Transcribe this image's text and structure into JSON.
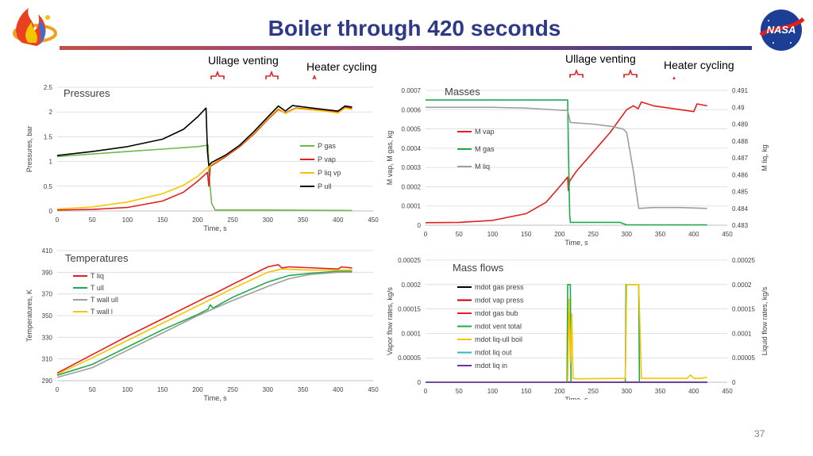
{
  "slide": {
    "title": "Boiler through 420 seconds",
    "page_number": "37",
    "annotations": {
      "ullage_venting_left": "Ullage venting",
      "heater_cycling_left": "Heater cycling",
      "ullage_venting_right": "Ullage venting",
      "heater_cycling_right": "Heater cycling"
    },
    "colors": {
      "title": "#2e3a87",
      "brace": "#e02020"
    },
    "logos": [
      "mission-logo",
      "nasa-logo"
    ]
  },
  "chart_data": [
    {
      "type": "line",
      "title": "Pressures",
      "xlabel": "Time, s",
      "ylabel": "Pressures, bar",
      "xlim": [
        0,
        450
      ],
      "ylim": [
        0,
        2.5
      ],
      "xticks": [
        "0",
        "50",
        "100",
        "150",
        "200",
        "250",
        "300",
        "350",
        "400",
        "450"
      ],
      "yticks": [
        "0",
        "0.5",
        "1",
        "1.5",
        "2",
        "2.5"
      ],
      "legend_position": "right",
      "series": [
        {
          "name": "P gas",
          "color": "#70b84a",
          "points": [
            [
              0,
              1.1
            ],
            [
              50,
              1.15
            ],
            [
              100,
              1.2
            ],
            [
              150,
              1.25
            ],
            [
              200,
              1.3
            ],
            [
              215,
              1.33
            ],
            [
              216,
              0.8
            ],
            [
              220,
              0.15
            ],
            [
              225,
              0.02
            ],
            [
              300,
              0.02
            ],
            [
              420,
              0.01
            ]
          ]
        },
        {
          "name": "P vap",
          "color": "#e02020",
          "points": [
            [
              0,
              0.02
            ],
            [
              50,
              0.03
            ],
            [
              100,
              0.07
            ],
            [
              150,
              0.2
            ],
            [
              180,
              0.38
            ],
            [
              200,
              0.6
            ],
            [
              214,
              0.78
            ],
            [
              216,
              0.5
            ],
            [
              218,
              0.9
            ],
            [
              240,
              1.1
            ],
            [
              260,
              1.3
            ],
            [
              280,
              1.55
            ],
            [
              300,
              1.85
            ],
            [
              315,
              2.05
            ],
            [
              325,
              1.98
            ],
            [
              340,
              2.08
            ],
            [
              380,
              2.03
            ],
            [
              400,
              2.0
            ],
            [
              410,
              2.1
            ],
            [
              420,
              2.08
            ]
          ]
        },
        {
          "name": "P liq vp",
          "color": "#f5c400",
          "points": [
            [
              0,
              0.04
            ],
            [
              50,
              0.08
            ],
            [
              100,
              0.18
            ],
            [
              150,
              0.35
            ],
            [
              180,
              0.52
            ],
            [
              200,
              0.7
            ],
            [
              214,
              0.88
            ],
            [
              216,
              0.85
            ],
            [
              218,
              0.92
            ],
            [
              240,
              1.12
            ],
            [
              260,
              1.32
            ],
            [
              280,
              1.57
            ],
            [
              300,
              1.87
            ],
            [
              315,
              2.07
            ],
            [
              325,
              1.97
            ],
            [
              340,
              2.07
            ],
            [
              380,
              2.02
            ],
            [
              400,
              1.98
            ],
            [
              410,
              2.08
            ],
            [
              420,
              2.05
            ]
          ]
        },
        {
          "name": "P ull",
          "color": "#000000",
          "points": [
            [
              0,
              1.12
            ],
            [
              50,
              1.2
            ],
            [
              100,
              1.3
            ],
            [
              150,
              1.45
            ],
            [
              180,
              1.65
            ],
            [
              200,
              1.9
            ],
            [
              212,
              2.08
            ],
            [
              214,
              1.2
            ],
            [
              216,
              0.92
            ],
            [
              220,
              0.98
            ],
            [
              240,
              1.13
            ],
            [
              260,
              1.33
            ],
            [
              280,
              1.6
            ],
            [
              300,
              1.9
            ],
            [
              315,
              2.12
            ],
            [
              325,
              2.02
            ],
            [
              335,
              2.13
            ],
            [
              380,
              2.05
            ],
            [
              400,
              2.02
            ],
            [
              410,
              2.12
            ],
            [
              420,
              2.1
            ]
          ]
        }
      ]
    },
    {
      "type": "line",
      "title": "Masses",
      "xlabel": "Time, s",
      "ylabel": "M vap, M gas, kg",
      "ylabel_right": "M liq, kg",
      "xlim": [
        0,
        450
      ],
      "ylim": [
        0,
        0.0007
      ],
      "ylim_right": [
        0.483,
        0.491
      ],
      "xticks": [
        "0",
        "50",
        "100",
        "150",
        "200",
        "250",
        "300",
        "350",
        "400",
        "450"
      ],
      "yticks": [
        "0",
        "0.0001",
        "0.0002",
        "0.0003",
        "0.0004",
        "0.0005",
        "0.0006",
        "0.0007"
      ],
      "yticks_right": [
        "0.483",
        "0.484",
        "0.485",
        "0.486",
        "0.487",
        "0.488",
        "0.489",
        "0.49",
        "0.491"
      ],
      "legend_position": "left",
      "series": [
        {
          "name": "M vap",
          "color": "#e02020",
          "axis": "left",
          "points": [
            [
              0,
              1.3e-05
            ],
            [
              50,
              1.5e-05
            ],
            [
              100,
              2.5e-05
            ],
            [
              150,
              6e-05
            ],
            [
              180,
              0.00012
            ],
            [
              200,
              0.0002
            ],
            [
              212,
              0.00025
            ],
            [
              213,
              0.00018
            ],
            [
              215,
              0.00023
            ],
            [
              225,
              0.00028
            ],
            [
              250,
              0.00038
            ],
            [
              275,
              0.00048
            ],
            [
              300,
              0.0006
            ],
            [
              310,
              0.00062
            ],
            [
              317,
              0.000605
            ],
            [
              322,
              0.00064
            ],
            [
              340,
              0.00062
            ],
            [
              380,
              0.0006
            ],
            [
              400,
              0.00059
            ],
            [
              405,
              0.00063
            ],
            [
              420,
              0.00062
            ]
          ]
        },
        {
          "name": "M gas",
          "color": "#1faa4a",
          "axis": "left",
          "points": [
            [
              0,
              0.00065
            ],
            [
              212,
              0.00065
            ],
            [
              213,
              0.0004
            ],
            [
              215,
              5e-05
            ],
            [
              216,
              1.5e-05
            ],
            [
              290,
              1.5e-05
            ],
            [
              295,
              8e-06
            ],
            [
              300,
              2e-06
            ],
            [
              420,
              2e-06
            ]
          ]
        },
        {
          "name": "M liq",
          "color": "#9e9e9e",
          "axis": "right",
          "points": [
            [
              0,
              0.49
            ],
            [
              100,
              0.49
            ],
            [
              150,
              0.48995
            ],
            [
              212,
              0.4898
            ],
            [
              216,
              0.4891
            ],
            [
              250,
              0.489
            ],
            [
              280,
              0.48885
            ],
            [
              295,
              0.4887
            ],
            [
              300,
              0.4885
            ],
            [
              310,
              0.4862
            ],
            [
              318,
              0.484
            ],
            [
              340,
              0.48405
            ],
            [
              380,
              0.48405
            ],
            [
              420,
              0.484
            ]
          ]
        }
      ]
    },
    {
      "type": "line",
      "title": "Temperatures",
      "xlabel": "Time, s",
      "ylabel": "Temperatures, K",
      "xlim": [
        0,
        450
      ],
      "ylim": [
        290,
        410
      ],
      "xticks": [
        "0",
        "50",
        "100",
        "150",
        "200",
        "250",
        "300",
        "350",
        "400",
        "450"
      ],
      "yticks": [
        "290",
        "310",
        "330",
        "350",
        "370",
        "390",
        "410"
      ],
      "legend_position": "top-left",
      "series": [
        {
          "name": "T liq",
          "color": "#e02020",
          "points": [
            [
              0,
              297
            ],
            [
              50,
              314
            ],
            [
              100,
              331
            ],
            [
              150,
              347
            ],
            [
              200,
              363
            ],
            [
              215,
              368
            ],
            [
              220,
              369
            ],
            [
              250,
              379
            ],
            [
              300,
              395
            ],
            [
              315,
              397
            ],
            [
              320,
              394
            ],
            [
              330,
              395
            ],
            [
              400,
              393
            ],
            [
              405,
              395
            ],
            [
              420,
              394
            ]
          ]
        },
        {
          "name": "T ull",
          "color": "#1faa4a",
          "points": [
            [
              0,
              295
            ],
            [
              50,
              305
            ],
            [
              100,
              321
            ],
            [
              150,
              337
            ],
            [
              200,
              351
            ],
            [
              215,
              356
            ],
            [
              218,
              360
            ],
            [
              222,
              357
            ],
            [
              250,
              367
            ],
            [
              300,
              381
            ],
            [
              330,
              387
            ],
            [
              360,
              389
            ],
            [
              400,
              391
            ],
            [
              420,
              391
            ]
          ]
        },
        {
          "name": "T wall ull",
          "color": "#9e9e9e",
          "points": [
            [
              0,
              293
            ],
            [
              50,
              302
            ],
            [
              100,
              318
            ],
            [
              150,
              334
            ],
            [
              200,
              350
            ],
            [
              250,
              364
            ],
            [
              300,
              377
            ],
            [
              330,
              384
            ],
            [
              360,
              388
            ],
            [
              400,
              390
            ],
            [
              420,
              390
            ]
          ]
        },
        {
          "name": "T wall l",
          "color": "#f5c400",
          "points": [
            [
              0,
              296
            ],
            [
              50,
              311
            ],
            [
              100,
              327
            ],
            [
              150,
              343
            ],
            [
              200,
              359
            ],
            [
              250,
              375
            ],
            [
              300,
              390
            ],
            [
              320,
              393
            ],
            [
              360,
              392
            ],
            [
              400,
              392
            ],
            [
              420,
              392
            ]
          ]
        }
      ]
    },
    {
      "type": "line",
      "title": "Mass flows",
      "xlabel": "Time, s",
      "ylabel": "Vapor flow rates, kg/s",
      "ylabel_right": "Liquid flow rates, kg/s",
      "xlim": [
        0,
        450
      ],
      "ylim": [
        0,
        0.00025
      ],
      "ylim_right": [
        0,
        0.00025
      ],
      "xticks": [
        "0",
        "50",
        "100",
        "150",
        "200",
        "250",
        "300",
        "350",
        "400",
        "450"
      ],
      "yticks": [
        "0",
        "0.00005",
        "0.0001",
        "0.00015",
        "0.0002",
        "0.00025"
      ],
      "yticks_right": [
        "0",
        "0.00005",
        "0.0001",
        "0.00015",
        "0.0002",
        "0.00025"
      ],
      "legend_position": "left",
      "series": [
        {
          "name": "mdot gas press",
          "color": "#000000",
          "points": [
            [
              0,
              0
            ],
            [
              420,
              0
            ]
          ]
        },
        {
          "name": "mdot vap press",
          "color": "#c00000",
          "points": [
            [
              0,
              0
            ],
            [
              420,
              0
            ]
          ]
        },
        {
          "name": "mdot gas bub",
          "color": "#e02020",
          "points": [
            [
              0,
              0
            ],
            [
              420,
              0
            ]
          ]
        },
        {
          "name": "mdot vent total",
          "color": "#1faa4a",
          "points": [
            [
              0,
              0
            ],
            [
              211,
              0
            ],
            [
              212,
              0.0002
            ],
            [
              216,
              0.0002
            ],
            [
              217,
              0
            ],
            [
              298,
              0
            ],
            [
              299,
              0.0002
            ],
            [
              318,
              0.0002
            ],
            [
              319,
              0
            ],
            [
              420,
              0
            ]
          ]
        },
        {
          "name": "mdot liq-ull boil",
          "color": "#f5c400",
          "points": [
            [
              0,
              0
            ],
            [
              212,
              0
            ],
            [
              214,
              0.00017
            ],
            [
              216,
              4e-05
            ],
            [
              218,
              0.00014
            ],
            [
              220,
              8e-06
            ],
            [
              225,
              7e-06
            ],
            [
              298,
              8e-06
            ],
            [
              300,
              0.0002
            ],
            [
              318,
              0.0002
            ],
            [
              322,
              8e-06
            ],
            [
              390,
              8e-06
            ],
            [
              395,
              1.5e-05
            ],
            [
              400,
              8e-06
            ],
            [
              410,
              8e-06
            ],
            [
              420,
              1e-05
            ]
          ]
        },
        {
          "name": "mdot liq out",
          "color": "#2ab8c8",
          "points": [
            [
              0,
              0
            ],
            [
              420,
              0
            ]
          ]
        },
        {
          "name": "mdot liq in",
          "color": "#7030a0",
          "points": [
            [
              0,
              0
            ],
            [
              420,
              0
            ]
          ]
        }
      ]
    }
  ]
}
